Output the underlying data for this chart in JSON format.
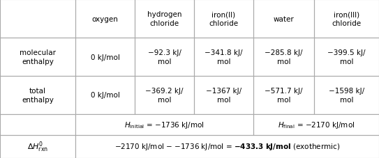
{
  "col_headers": [
    "",
    "oxygen",
    "hydrogen\nchloride",
    "iron(II)\nchloride",
    "water",
    "iron(III)\nchloride"
  ],
  "row1_label": "molecular\nenthalpy",
  "row1_values": [
    "0 kJ/mol",
    "−92.3 kJ/\nmol",
    "−341.8 kJ/\nmol",
    "−285.8 kJ/\nmol",
    "−399.5 kJ/\nmol"
  ],
  "row2_label": "total\nenthalpy",
  "row2_values": [
    "0 kJ/mol",
    "−369.2 kJ/\nmol",
    "−1367 kJ/\nmol",
    "−571.7 kJ/\nmol",
    "−1598 kJ/\nmol"
  ],
  "row3_label": "",
  "row3_col1": "H_initial = −1736 kJ/mol",
  "row3_col4": "H_final = −2170 kJ/mol",
  "row4_label": "ΔH°ᵣˣⁿ",
  "row4_value": "−2170 kJ/mol − −1736 kJ/mol = −433.3 kJ/mol (exothermic)",
  "row4_bold_part": "−433.3 kJ/mol",
  "bg_color": "#ffffff",
  "grid_color": "#aaaaaa",
  "text_color": "#000000",
  "font_size": 7.5
}
